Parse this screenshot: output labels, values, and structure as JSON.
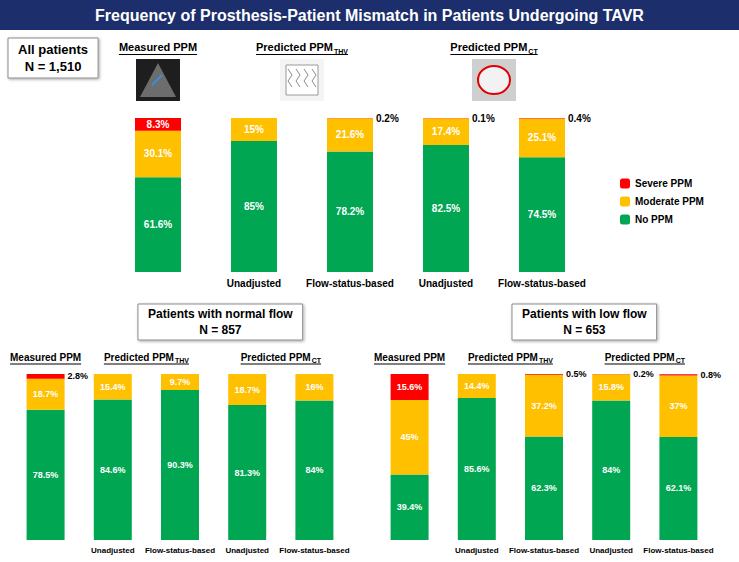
{
  "title": "Frequency of Prosthesis-Patient Mismatch in Patients Undergoing TAVR",
  "chart_data": [
    {
      "type": "bar",
      "title": "All patients",
      "subtitle": "N = 1,510",
      "groups": [
        {
          "label": "Measured PPM",
          "span": 1
        },
        {
          "label": "Predicted PPM",
          "subscript": "THV",
          "span": 2
        },
        {
          "label": "Predicted PPM",
          "subscript": "CT",
          "span": 2
        }
      ],
      "categories": [
        null,
        "Unadjusted",
        "Flow-status-based",
        "Unadjusted",
        "Flow-status-based"
      ],
      "series": [
        {
          "name": "No PPM",
          "color": "#00a651",
          "values": [
            61.6,
            85,
            78.2,
            82.5,
            74.5
          ],
          "value_labels": [
            "61.6%",
            "85%",
            "78.2%",
            "82.5%",
            "74.5%"
          ]
        },
        {
          "name": "Moderate PPM",
          "color": "#ffc000",
          "values": [
            30.1,
            15,
            21.6,
            17.4,
            25.1
          ],
          "value_labels": [
            "30.1%",
            "15%",
            "21.6%",
            "17.4%",
            "25.1%"
          ]
        },
        {
          "name": "Severe PPM",
          "color": "#ff0000",
          "values": [
            8.3,
            0,
            0.2,
            0.1,
            0.4
          ],
          "value_labels": [
            "8.3%",
            null,
            "0.2%",
            "0.1%",
            "0.4%"
          ]
        }
      ],
      "ylim": [
        0,
        100
      ],
      "stacked": true,
      "data_labels": true,
      "tick_labels": "x",
      "legend": "right"
    },
    {
      "type": "bar",
      "title": "Patients with normal flow",
      "subtitle": "N = 857",
      "groups": [
        {
          "label": "Measured PPM",
          "span": 1
        },
        {
          "label": "Predicted PPM",
          "subscript": "THV",
          "span": 2
        },
        {
          "label": "Predicted PPM",
          "subscript": "CT",
          "span": 2
        }
      ],
      "categories": [
        null,
        "Unadjusted",
        "Flow-status-based",
        "Unadjusted",
        "Flow-status-based"
      ],
      "series": [
        {
          "name": "No PPM",
          "color": "#00a651",
          "values": [
            78.5,
            84.6,
            90.3,
            81.3,
            84
          ],
          "value_labels": [
            "78.5%",
            "84.6%",
            "90.3%",
            "81.3%",
            "84%"
          ]
        },
        {
          "name": "Moderate PPM",
          "color": "#ffc000",
          "values": [
            18.7,
            15.4,
            9.7,
            18.7,
            16
          ],
          "value_labels": [
            "18.7%",
            "15.4%",
            "9.7%",
            "18.7%",
            "16%"
          ]
        },
        {
          "name": "Severe PPM",
          "color": "#ff0000",
          "values": [
            2.8,
            0,
            0,
            0,
            0
          ],
          "value_labels": [
            "2.8%",
            null,
            null,
            null,
            null
          ]
        }
      ],
      "ylim": [
        0,
        100
      ],
      "stacked": true,
      "data_labels": true,
      "tick_labels": "x"
    },
    {
      "type": "bar",
      "title": "Patients with low flow",
      "subtitle": "N = 653",
      "groups": [
        {
          "label": "Measured PPM",
          "span": 1
        },
        {
          "label": "Predicted PPM",
          "subscript": "THV",
          "span": 2
        },
        {
          "label": "Predicted PPM",
          "subscript": "CT",
          "span": 2
        }
      ],
      "categories": [
        null,
        "Unadjusted",
        "Flow-status-based",
        "Unadjusted",
        "Flow-status-based"
      ],
      "series": [
        {
          "name": "No PPM",
          "color": "#00a651",
          "values": [
            39.4,
            85.6,
            62.3,
            84,
            62.1
          ],
          "value_labels": [
            "39.4%",
            "85.6%",
            "62.3%",
            "84%",
            "62.1%"
          ]
        },
        {
          "name": "Moderate PPM",
          "color": "#ffc000",
          "values": [
            45,
            14.4,
            37.2,
            15.8,
            37
          ],
          "value_labels": [
            "45%",
            "14.4%",
            "37.2%",
            "15.8%",
            "37%"
          ]
        },
        {
          "name": "Severe PPM",
          "color": "#ff0000",
          "values": [
            15.6,
            0,
            0.5,
            0.2,
            0.8
          ],
          "value_labels": [
            "15.6%",
            null,
            "0.5%",
            "0.2%",
            "0.8%"
          ]
        }
      ],
      "ylim": [
        0,
        100
      ],
      "stacked": true,
      "data_labels": true,
      "tick_labels": "x"
    }
  ]
}
